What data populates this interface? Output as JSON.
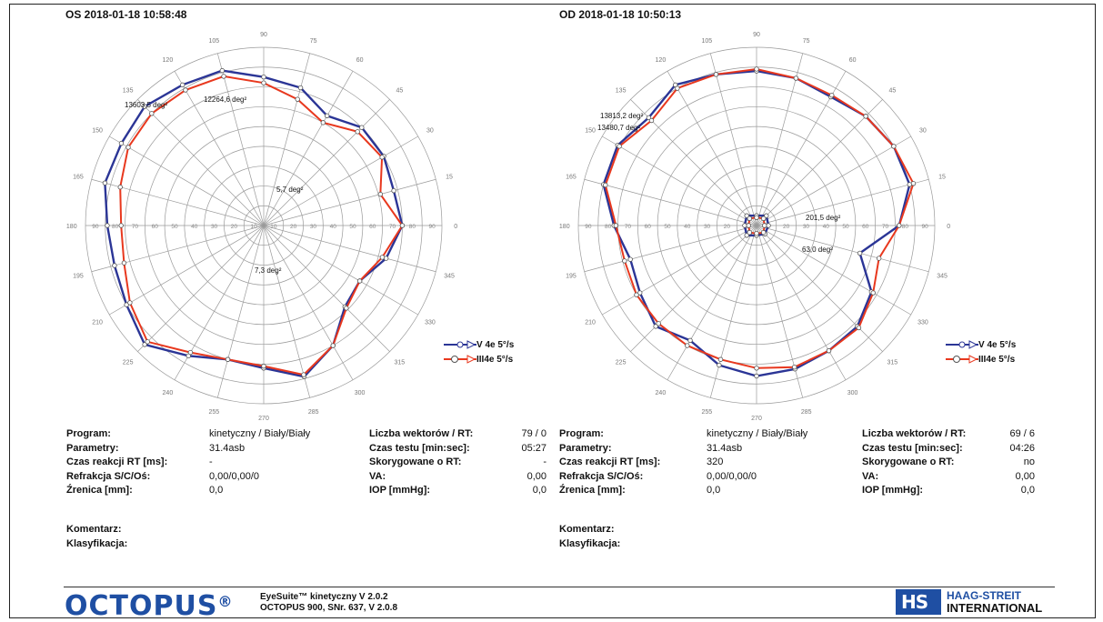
{
  "left": {
    "title": "OS 2018-01-18 10:58:48",
    "info": [
      [
        "Program:",
        "kinetyczny / Biały/Biały"
      ],
      [
        "Parametry:",
        "31.4asb"
      ],
      [
        "Czas reakcji RT [ms]:",
        "-"
      ],
      [
        "Refrakcja S/C/Oś:",
        "0,00/0,00/0"
      ],
      [
        "Źrenica [mm]:",
        "0,0"
      ]
    ],
    "info2": [
      [
        "Liczba wektorów / RT:",
        "79 / 0"
      ],
      [
        "Czas testu [min:sec]:",
        "05:27"
      ],
      [
        "Skorygowane o RT:",
        "-"
      ],
      [
        "VA:",
        "0,00"
      ],
      [
        "IOP [mmHg]:",
        "0,0"
      ]
    ],
    "comment": "Komentarz:",
    "classification": "Klasyfikacja:"
  },
  "right": {
    "title": "OD 2018-01-18 10:50:13",
    "info": [
      [
        "Program:",
        "kinetyczny / Biały/Biały"
      ],
      [
        "Parametry:",
        "31.4asb"
      ],
      [
        "Czas reakcji RT [ms]:",
        "320"
      ],
      [
        "Refrakcja S/C/Oś:",
        "0,00/0,00/0"
      ],
      [
        "Źrenica [mm]:",
        "0,0"
      ]
    ],
    "info2": [
      [
        "Liczba wektorów / RT:",
        "69 / 6"
      ],
      [
        "Czas testu [min:sec]:",
        "04:26"
      ],
      [
        "Skorygowane o RT:",
        "no"
      ],
      [
        "VA:",
        "0,00"
      ],
      [
        "IOP [mmHg]:",
        "0,0"
      ]
    ],
    "comment": "Komentarz:",
    "classification": "Klasyfikacja:"
  },
  "legend": {
    "v4e": "V 4e  5°/s",
    "iii4e": "III4e  5°/s"
  },
  "colors": {
    "v4e": "#2b3596",
    "iii4e": "#e8381e",
    "grid": "#9a9a9a"
  },
  "footer": {
    "brand": "OCTOPUS",
    "software": "EyeSuite™ kinetyczny V 2.0.2",
    "device": "OCTOPUS 900, SNr. 637, V 2.0.8",
    "company_line1": "HAAG-STREIT",
    "company_line2": "INTERNATIONAL",
    "logo_mark": "HS"
  },
  "chart_data": [
    {
      "type": "polar-isopter",
      "title": "OS 2018-01-18 10:58:48",
      "rlim": [
        0,
        90
      ],
      "radial_ticks": [
        10,
        20,
        30,
        40,
        50,
        60,
        70,
        80,
        90
      ],
      "angle_ticks": [
        0,
        15,
        30,
        45,
        60,
        75,
        90,
        105,
        120,
        135,
        150,
        165,
        180,
        195,
        210,
        225,
        240,
        255,
        270,
        285,
        300,
        315,
        330,
        345
      ],
      "series": [
        {
          "name": "V 4e  5°/s",
          "points": [
            [
              0,
              70
            ],
            [
              15,
              68
            ],
            [
              30,
              70
            ],
            [
              45,
              70
            ],
            [
              60,
              64
            ],
            [
              75,
              72
            ],
            [
              90,
              75
            ],
            [
              105,
              81
            ],
            [
              120,
              82
            ],
            [
              135,
              85
            ],
            [
              150,
              83
            ],
            [
              165,
              83
            ],
            [
              180,
              79
            ],
            [
              195,
              78
            ],
            [
              210,
              80
            ],
            [
              225,
              85
            ],
            [
              240,
              76
            ],
            [
              255,
              70
            ],
            [
              270,
              72
            ],
            [
              285,
              79
            ],
            [
              300,
              70
            ],
            [
              315,
              58
            ],
            [
              330,
              56
            ],
            [
              345,
              64
            ]
          ]
        },
        {
          "name": "III4e  5°/s",
          "points": [
            [
              0,
              70
            ],
            [
              15,
              61
            ],
            [
              30,
              69
            ],
            [
              45,
              67
            ],
            [
              60,
              60
            ],
            [
              75,
              66
            ],
            [
              90,
              72
            ],
            [
              105,
              78
            ],
            [
              120,
              79
            ],
            [
              135,
              80
            ],
            [
              150,
              79
            ],
            [
              165,
              75
            ],
            [
              180,
              72
            ],
            [
              195,
              73
            ],
            [
              210,
              78
            ],
            [
              225,
              83
            ],
            [
              240,
              74
            ],
            [
              255,
              70
            ],
            [
              270,
              71
            ],
            [
              285,
              78
            ],
            [
              300,
              70
            ],
            [
              315,
              59
            ],
            [
              330,
              56
            ],
            [
              345,
              62
            ]
          ]
        }
      ],
      "annotations": [
        "13603,5 deg²",
        "12264,6 deg²",
        "5,7 deg²",
        "7,3 deg²"
      ]
    },
    {
      "type": "polar-isopter",
      "title": "OD 2018-01-18 10:50:13",
      "rlim": [
        0,
        90
      ],
      "radial_ticks": [
        10,
        20,
        30,
        40,
        50,
        60,
        70,
        80,
        90
      ],
      "angle_ticks": [
        0,
        15,
        30,
        45,
        60,
        75,
        90,
        105,
        120,
        135,
        150,
        165,
        180,
        195,
        210,
        225,
        240,
        255,
        270,
        285,
        300,
        315,
        330,
        345
      ],
      "series": [
        {
          "name": "V 4e  5°/s",
          "points": [
            [
              0,
              72
            ],
            [
              15,
              80
            ],
            [
              30,
              80
            ],
            [
              45,
              78
            ],
            [
              60,
              75
            ],
            [
              75,
              77
            ],
            [
              90,
              78
            ],
            [
              105,
              79
            ],
            [
              120,
              82
            ],
            [
              135,
              77
            ],
            [
              150,
              81
            ],
            [
              165,
              80
            ],
            [
              180,
              72
            ],
            [
              195,
              66
            ],
            [
              210,
              68
            ],
            [
              225,
              72
            ],
            [
              240,
              67
            ],
            [
              255,
              73
            ],
            [
              270,
              76
            ],
            [
              285,
              75
            ],
            [
              300,
              73
            ],
            [
              315,
              72
            ],
            [
              330,
              67
            ],
            [
              345,
              54
            ]
          ]
        },
        {
          "name": "III4e  5°/s",
          "points": [
            [
              0,
              72
            ],
            [
              15,
              82
            ],
            [
              30,
              80
            ],
            [
              45,
              78
            ],
            [
              60,
              76
            ],
            [
              75,
              77
            ],
            [
              90,
              79
            ],
            [
              105,
              79
            ],
            [
              120,
              80
            ],
            [
              135,
              75
            ],
            [
              150,
              80
            ],
            [
              165,
              79
            ],
            [
              180,
              71
            ],
            [
              195,
              69
            ],
            [
              210,
              70
            ],
            [
              225,
              70
            ],
            [
              240,
              70
            ],
            [
              255,
              70
            ],
            [
              270,
              72
            ],
            [
              285,
              74
            ],
            [
              300,
              73
            ],
            [
              315,
              73
            ],
            [
              330,
              68
            ],
            [
              345,
              64
            ]
          ]
        },
        {
          "name": "V 4e  5°/s",
          "points": [
            [
              0,
              6
            ],
            [
              45,
              7
            ],
            [
              90,
              5
            ],
            [
              135,
              7
            ],
            [
              180,
              6
            ],
            [
              225,
              7
            ],
            [
              270,
              5
            ],
            [
              315,
              6
            ]
          ]
        },
        {
          "name": "III4e  5°/s",
          "points": [
            [
              0,
              4
            ],
            [
              45,
              5
            ],
            [
              90,
              4
            ],
            [
              135,
              5
            ],
            [
              180,
              4
            ],
            [
              225,
              5
            ],
            [
              270,
              4
            ],
            [
              315,
              5
            ]
          ]
        }
      ],
      "annotations": [
        "13813,2 deg²",
        "13480,7 deg²",
        "201,5 deg²",
        "63,0 deg²"
      ]
    }
  ]
}
